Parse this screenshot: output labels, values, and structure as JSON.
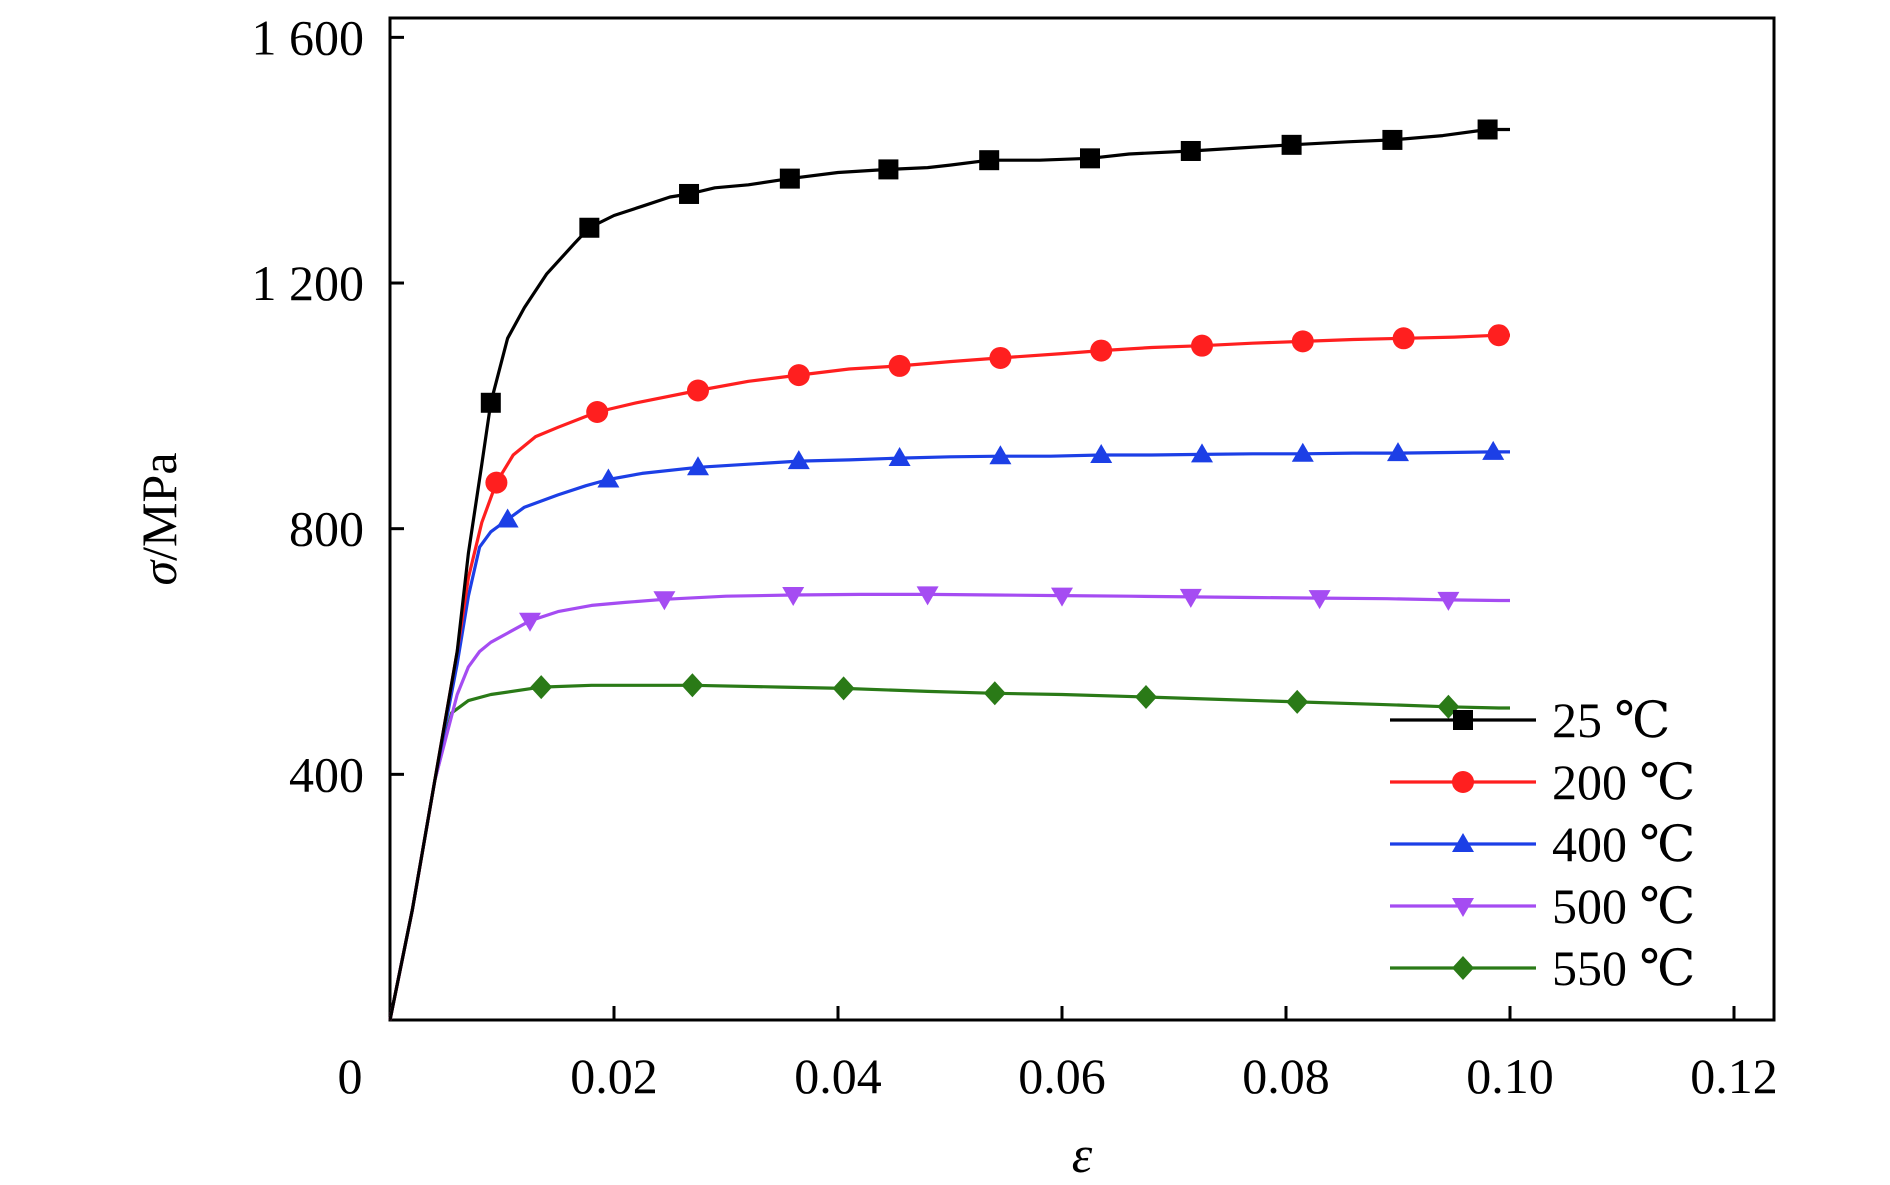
{
  "chart_data": {
    "type": "line",
    "title": "",
    "xlabel": "ε",
    "ylabel_symbol": "σ",
    "ylabel_unit": "/MPa",
    "xlim": [
      0,
      0.124
    ],
    "ylim": [
      0,
      1630
    ],
    "x_ticks": [
      {
        "value": 0,
        "label": "0"
      },
      {
        "value": 0.02,
        "label": "0.02"
      },
      {
        "value": 0.04,
        "label": "0.04"
      },
      {
        "value": 0.06,
        "label": "0.06"
      },
      {
        "value": 0.08,
        "label": "0.08"
      },
      {
        "value": 0.1,
        "label": "0.10"
      },
      {
        "value": 0.12,
        "label": "0.12"
      }
    ],
    "y_ticks": [
      {
        "value": 400,
        "label": "400"
      },
      {
        "value": 800,
        "label": "800"
      },
      {
        "value": 1200,
        "label": "1 200"
      },
      {
        "value": 1600,
        "label": "1 600"
      }
    ],
    "grid": false,
    "legend_position": "bottom-right",
    "series": [
      {
        "name": "25 ℃",
        "color": "#000000",
        "marker": "square",
        "x": [
          0,
          0.002,
          0.004,
          0.006,
          0.007,
          0.0082,
          0.009,
          0.0105,
          0.012,
          0.014,
          0.0165,
          0.0178,
          0.02,
          0.0225,
          0.025,
          0.0267,
          0.029,
          0.032,
          0.0357,
          0.04,
          0.0445,
          0.048,
          0.05,
          0.0535,
          0.058,
          0.0625,
          0.066,
          0.0715,
          0.076,
          0.0805,
          0.0855,
          0.0895,
          0.094,
          0.098,
          0.1
        ],
        "y": [
          0,
          180,
          390,
          600,
          760,
          905,
          1005,
          1110,
          1160,
          1215,
          1265,
          1290,
          1310,
          1325,
          1340,
          1345,
          1355,
          1360,
          1370,
          1380,
          1385,
          1388,
          1392,
          1400,
          1400,
          1403,
          1410,
          1415,
          1420,
          1425,
          1430,
          1433,
          1440,
          1450,
          1450
        ],
        "markers_x": [
          0.009,
          0.0178,
          0.0267,
          0.0357,
          0.0445,
          0.0535,
          0.0625,
          0.0715,
          0.0805,
          0.0895,
          0.098
        ],
        "markers_y": [
          1005,
          1290,
          1345,
          1370,
          1385,
          1400,
          1403,
          1415,
          1425,
          1433,
          1450
        ]
      },
      {
        "name": "200 ℃",
        "color": "#ff1f1f",
        "marker": "circle",
        "x": [
          0,
          0.002,
          0.004,
          0.006,
          0.007,
          0.0082,
          0.0095,
          0.011,
          0.013,
          0.015,
          0.0185,
          0.022,
          0.0275,
          0.032,
          0.0365,
          0.041,
          0.0455,
          0.05,
          0.0545,
          0.06,
          0.0635,
          0.068,
          0.0725,
          0.077,
          0.0815,
          0.086,
          0.0905,
          0.095,
          0.099,
          0.1
        ],
        "y": [
          0,
          180,
          390,
          600,
          720,
          810,
          875,
          920,
          950,
          965,
          990,
          1005,
          1025,
          1040,
          1050,
          1060,
          1065,
          1072,
          1078,
          1085,
          1090,
          1095,
          1098,
          1102,
          1105,
          1108,
          1110,
          1112,
          1115,
          1115
        ],
        "markers_x": [
          0.0095,
          0.0185,
          0.0275,
          0.0365,
          0.0455,
          0.0545,
          0.0635,
          0.0725,
          0.0815,
          0.0905,
          0.099
        ],
        "markers_y": [
          875,
          990,
          1025,
          1050,
          1065,
          1078,
          1090,
          1098,
          1105,
          1110,
          1115
        ]
      },
      {
        "name": "400 ℃",
        "color": "#1c3fe6",
        "marker": "triangle-up",
        "x": [
          0,
          0.002,
          0.004,
          0.006,
          0.007,
          0.008,
          0.009,
          0.0105,
          0.012,
          0.015,
          0.0175,
          0.0195,
          0.0225,
          0.0275,
          0.032,
          0.0365,
          0.041,
          0.0455,
          0.05,
          0.0545,
          0.059,
          0.0635,
          0.068,
          0.0725,
          0.077,
          0.0815,
          0.086,
          0.09,
          0.0945,
          0.0985,
          0.1
        ],
        "y": [
          0,
          180,
          390,
          580,
          690,
          770,
          795,
          815,
          835,
          855,
          870,
          880,
          890,
          900,
          905,
          910,
          912,
          915,
          917,
          918,
          918,
          920,
          920,
          921,
          922,
          922,
          923,
          923,
          924,
          925,
          925
        ],
        "markers_x": [
          0.0105,
          0.0195,
          0.0275,
          0.0365,
          0.0455,
          0.0545,
          0.0635,
          0.0725,
          0.0815,
          0.09,
          0.0985
        ],
        "markers_y": [
          815,
          880,
          900,
          910,
          915,
          918,
          920,
          921,
          922,
          923,
          925
        ]
      },
      {
        "name": "500 ℃",
        "color": "#a54cf2",
        "marker": "triangle-down",
        "x": [
          0,
          0.002,
          0.004,
          0.006,
          0.007,
          0.008,
          0.009,
          0.0105,
          0.0125,
          0.015,
          0.018,
          0.021,
          0.0245,
          0.03,
          0.036,
          0.042,
          0.048,
          0.054,
          0.06,
          0.066,
          0.0715,
          0.077,
          0.083,
          0.089,
          0.0945,
          0.099,
          0.1
        ],
        "y": [
          0,
          180,
          390,
          530,
          575,
          600,
          615,
          630,
          650,
          665,
          675,
          680,
          685,
          690,
          692,
          693,
          693,
          692,
          691,
          690,
          689,
          688,
          687,
          686,
          684,
          683,
          683
        ],
        "markers_x": [
          0.0125,
          0.0245,
          0.036,
          0.048,
          0.06,
          0.0715,
          0.083,
          0.0945
        ],
        "markers_y": [
          650,
          685,
          692,
          693,
          691,
          689,
          687,
          684
        ]
      },
      {
        "name": "550 ℃",
        "color": "#2a7a17",
        "marker": "diamond",
        "x": [
          0,
          0.002,
          0.004,
          0.0055,
          0.007,
          0.009,
          0.0135,
          0.018,
          0.027,
          0.035,
          0.0405,
          0.048,
          0.054,
          0.06,
          0.0675,
          0.074,
          0.081,
          0.088,
          0.0945,
          0.099,
          0.1
        ],
        "y": [
          0,
          180,
          390,
          500,
          520,
          530,
          542,
          545,
          545,
          542,
          540,
          535,
          532,
          530,
          526,
          522,
          518,
          514,
          510,
          508,
          508
        ],
        "markers_x": [
          0.0135,
          0.027,
          0.0405,
          0.054,
          0.0675,
          0.081,
          0.0945
        ],
        "markers_y": [
          542,
          545,
          540,
          532,
          526,
          518,
          510
        ]
      }
    ]
  }
}
